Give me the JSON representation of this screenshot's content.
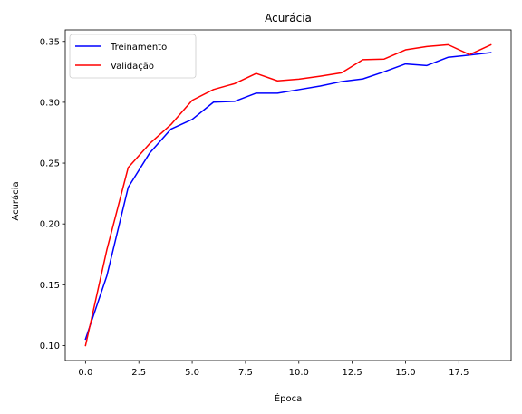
{
  "chart_data": {
    "type": "line",
    "title": "Acurácia",
    "xlabel": "Época",
    "ylabel": "Acurácia",
    "xlim": [
      -0.95,
      19.95
    ],
    "ylim": [
      0.0877,
      0.3595
    ],
    "xticks": [
      0,
      2.5,
      5,
      7.5,
      10,
      12.5,
      15,
      17.5
    ],
    "xtick_labels": [
      "0.0",
      "2.5",
      "5.0",
      "7.5",
      "10.0",
      "12.5",
      "15.0",
      "17.5"
    ],
    "yticks": [
      0.1,
      0.15,
      0.2,
      0.25,
      0.3,
      0.35
    ],
    "ytick_labels": [
      "0.10",
      "0.15",
      "0.20",
      "0.25",
      "0.30",
      "0.35"
    ],
    "grid": false,
    "legend_position": "top-left",
    "x": [
      0,
      1,
      2,
      3,
      4,
      5,
      6,
      7,
      8,
      9,
      10,
      11,
      12,
      13,
      14,
      15,
      16,
      17,
      18,
      19
    ],
    "series": [
      {
        "name": "Treinamento",
        "color": "#0000ff",
        "values": [
          0.1053,
          0.1573,
          0.23,
          0.2581,
          0.2779,
          0.2859,
          0.3001,
          0.3008,
          0.3075,
          0.3075,
          0.3104,
          0.3133,
          0.317,
          0.3192,
          0.3251,
          0.3315,
          0.3302,
          0.337,
          0.3388,
          0.3408
        ]
      },
      {
        "name": "Validação",
        "color": "#ff0000",
        "values": [
          0.1,
          0.1787,
          0.2463,
          0.2659,
          0.2816,
          0.3016,
          0.3105,
          0.3154,
          0.3237,
          0.3176,
          0.319,
          0.3214,
          0.3242,
          0.335,
          0.3355,
          0.3431,
          0.3458,
          0.3473,
          0.3392,
          0.3472
        ]
      }
    ]
  }
}
